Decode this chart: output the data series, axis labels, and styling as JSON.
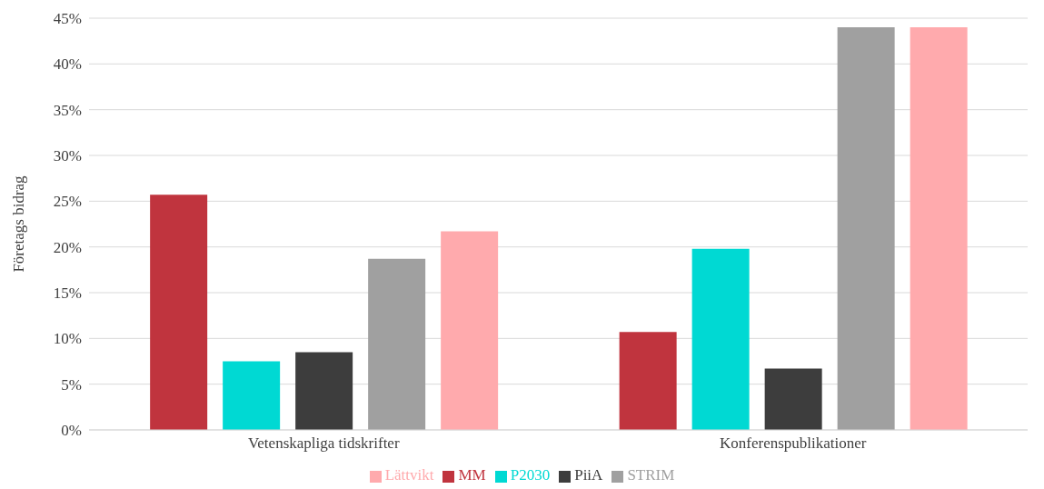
{
  "chart_data": {
    "type": "bar",
    "ylabel": "Företags bidrag",
    "categories": [
      "Vetenskapliga tidskrifter",
      "Konferenspublikationer"
    ],
    "series": [
      {
        "name": "MM",
        "color": "#c0343e",
        "values": [
          25.7,
          10.7
        ]
      },
      {
        "name": "P2030",
        "color": "#00d9d3",
        "values": [
          7.5,
          19.8
        ]
      },
      {
        "name": "PiiA",
        "color": "#3d3d3d",
        "values": [
          8.5,
          6.7
        ]
      },
      {
        "name": "STRIM",
        "color": "#a0a0a0",
        "values": [
          18.7,
          44
        ]
      },
      {
        "name": "Lättvikt",
        "color": "#ffaaad",
        "values": [
          21.7,
          44
        ]
      }
    ],
    "ylim": [
      0,
      45
    ],
    "yticks": [
      {
        "value": 0,
        "label": "0%"
      },
      {
        "value": 5,
        "label": "5%"
      },
      {
        "value": 10,
        "label": "10%"
      },
      {
        "value": 15,
        "label": "15%"
      },
      {
        "value": 20,
        "label": "20%"
      },
      {
        "value": 25,
        "label": "25%"
      },
      {
        "value": 30,
        "label": "30%"
      },
      {
        "value": 35,
        "label": "35%"
      },
      {
        "value": 40,
        "label": "40%"
      },
      {
        "value": 45,
        "label": "45%"
      }
    ],
    "grid": "y",
    "legend": "bottom"
  }
}
